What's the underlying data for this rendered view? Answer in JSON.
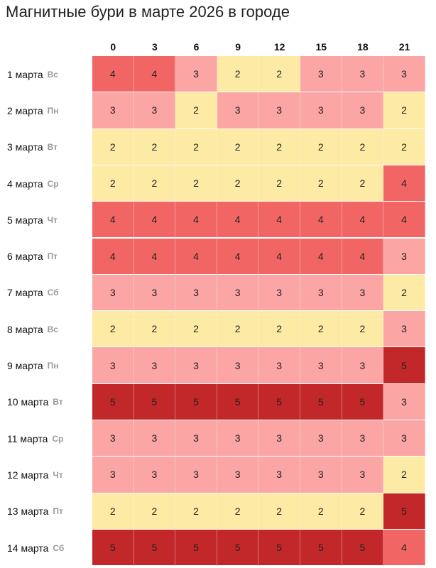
{
  "title": "Магнитные бури в марте 2026 в городе",
  "table": {
    "columns": [
      0,
      3,
      6,
      9,
      12,
      15,
      18,
      21
    ],
    "rows": [
      {
        "date": "1 марта",
        "weekday": "Вс",
        "values": [
          4,
          4,
          3,
          2,
          2,
          3,
          3,
          3
        ]
      },
      {
        "date": "2 марта",
        "weekday": "Пн",
        "values": [
          3,
          3,
          2,
          3,
          3,
          3,
          3,
          2
        ]
      },
      {
        "date": "3 марта",
        "weekday": "Вт",
        "values": [
          2,
          2,
          2,
          2,
          2,
          2,
          2,
          2
        ]
      },
      {
        "date": "4 марта",
        "weekday": "Ср",
        "values": [
          2,
          2,
          2,
          2,
          2,
          2,
          2,
          4
        ]
      },
      {
        "date": "5 марта",
        "weekday": "Чт",
        "values": [
          4,
          4,
          4,
          4,
          4,
          4,
          4,
          4
        ]
      },
      {
        "date": "6 марта",
        "weekday": "Пт",
        "values": [
          4,
          4,
          4,
          4,
          4,
          4,
          4,
          3
        ]
      },
      {
        "date": "7 марта",
        "weekday": "Сб",
        "values": [
          3,
          3,
          3,
          3,
          3,
          3,
          3,
          2
        ]
      },
      {
        "date": "8 марта",
        "weekday": "Вс",
        "values": [
          2,
          2,
          2,
          2,
          2,
          2,
          2,
          3
        ]
      },
      {
        "date": "9 марта",
        "weekday": "Пн",
        "values": [
          3,
          3,
          3,
          3,
          3,
          3,
          3,
          5
        ]
      },
      {
        "date": "10 марта",
        "weekday": "Вт",
        "values": [
          5,
          5,
          5,
          5,
          5,
          5,
          5,
          3
        ]
      },
      {
        "date": "11 марта",
        "weekday": "Ср",
        "values": [
          3,
          3,
          3,
          3,
          3,
          3,
          3,
          3
        ]
      },
      {
        "date": "12 марта",
        "weekday": "Чт",
        "values": [
          3,
          3,
          3,
          3,
          3,
          3,
          3,
          2
        ]
      },
      {
        "date": "13 марта",
        "weekday": "Пт",
        "values": [
          2,
          2,
          2,
          2,
          2,
          2,
          2,
          5
        ]
      },
      {
        "date": "14 марта",
        "weekday": "Сб",
        "values": [
          5,
          5,
          5,
          5,
          5,
          5,
          5,
          4
        ]
      }
    ]
  },
  "scale": [
    {
      "value": 2,
      "color": "#fdeaa4"
    },
    {
      "value": 3,
      "color": "#fba5a5"
    },
    {
      "value": 4,
      "color": "#f26565"
    },
    {
      "value": 5,
      "color": "#c2282a"
    }
  ]
}
